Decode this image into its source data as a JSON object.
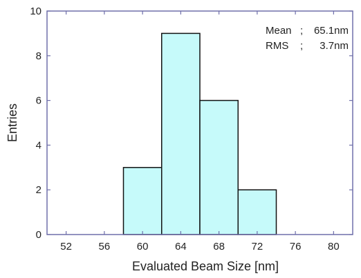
{
  "chart_data": {
    "type": "bar",
    "histogram": true,
    "xlabel": "Evaluated Beam Size [nm]",
    "ylabel": "Entries",
    "xlim": [
      50,
      82
    ],
    "ylim": [
      0,
      10
    ],
    "xticks": [
      52,
      56,
      60,
      64,
      68,
      72,
      76,
      80
    ],
    "yticks": [
      0,
      2,
      4,
      6,
      8,
      10
    ],
    "bins": [
      {
        "x0": 58,
        "x1": 62,
        "value": 3
      },
      {
        "x0": 62,
        "x1": 66,
        "value": 9
      },
      {
        "x0": 66,
        "x1": 70,
        "value": 6
      },
      {
        "x0": 70,
        "x1": 74,
        "value": 2
      }
    ],
    "bar_color": "#c6fafa",
    "bar_edge_color": "#111111",
    "axis_color": "#6f6faa",
    "stats": [
      {
        "label": "Mean",
        "sep": ";",
        "value": "65.1nm"
      },
      {
        "label": "RMS",
        "sep": ";",
        "value": "3.7nm"
      }
    ],
    "grid": false
  }
}
